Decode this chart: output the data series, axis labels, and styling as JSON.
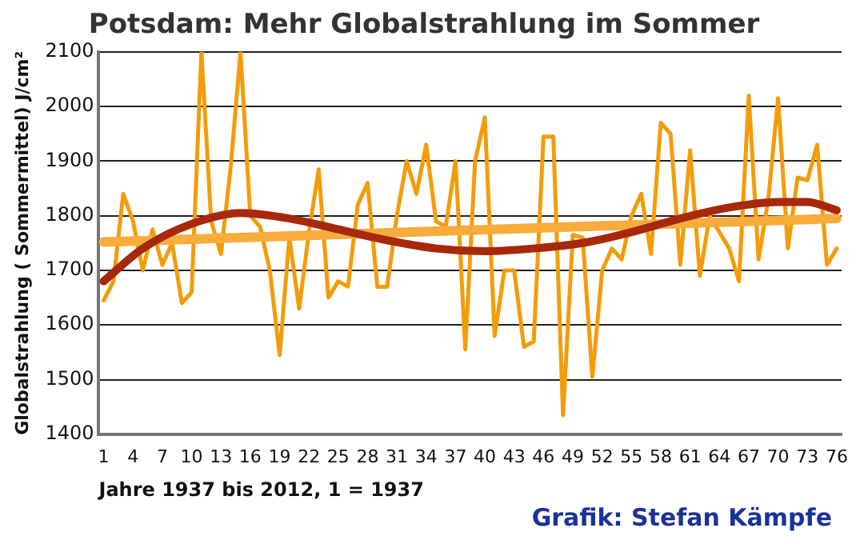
{
  "chart_data": {
    "type": "line",
    "title": "Potsdam: Mehr Globalstrahlung im Sommer",
    "xlabel": "Jahre 1937 bis 2012, 1 = 1937",
    "ylabel": "Globalstrahlung ( Sommermittel) J/cm²",
    "annotations": [
      "Grafik: Stefan Kämpfe"
    ],
    "x": [
      1,
      2,
      3,
      4,
      5,
      6,
      7,
      8,
      9,
      10,
      11,
      12,
      13,
      14,
      15,
      16,
      17,
      18,
      19,
      20,
      21,
      22,
      23,
      24,
      25,
      26,
      27,
      28,
      29,
      30,
      31,
      32,
      33,
      34,
      35,
      36,
      37,
      38,
      39,
      40,
      41,
      42,
      43,
      44,
      45,
      46,
      47,
      48,
      49,
      50,
      51,
      52,
      53,
      54,
      55,
      56,
      57,
      58,
      59,
      60,
      61,
      62,
      63,
      64,
      65,
      66,
      67,
      68,
      69,
      70,
      71,
      72,
      73,
      74,
      75,
      76
    ],
    "series": [
      {
        "color": "#f39c0a",
        "values": [
          1645,
          1680,
          1840,
          1790,
          1700,
          1775,
          1710,
          1750,
          1640,
          1660,
          2100,
          1790,
          1730,
          1890,
          2100,
          1800,
          1780,
          1700,
          1545,
          1760,
          1630,
          1770,
          1885,
          1650,
          1680,
          1670,
          1820,
          1860,
          1670,
          1670,
          1800,
          1900,
          1840,
          1930,
          1790,
          1780,
          1900,
          1555,
          1900,
          1980,
          1580,
          1700,
          1700,
          1560,
          1570,
          1945,
          1945,
          1435,
          1765,
          1760,
          1505,
          1700,
          1740,
          1720,
          1800,
          1840,
          1730,
          1970,
          1950,
          1710,
          1920,
          1690,
          1800,
          1770,
          1740,
          1680,
          2020,
          1720,
          1830,
          2015,
          1740,
          1870,
          1865,
          1930,
          1710,
          1740
        ]
      },
      {
        "color": "#f7ac3c",
        "x": [
          1,
          76
        ],
        "values": [
          1752,
          1795
        ]
      },
      {
        "color": "#a8280c",
        "x": [
          1,
          5,
          10,
          15,
          20,
          25,
          30,
          35,
          40,
          45,
          50,
          55,
          60,
          65,
          70,
          73,
          76
        ],
        "values": [
          1680,
          1740,
          1785,
          1805,
          1795,
          1775,
          1755,
          1740,
          1735,
          1740,
          1750,
          1770,
          1795,
          1815,
          1825,
          1825,
          1810
        ]
      }
    ],
    "xlim": [
      0.5,
      76.5
    ],
    "xticks": [
      1,
      4,
      7,
      10,
      13,
      16,
      19,
      22,
      25,
      28,
      31,
      34,
      37,
      40,
      43,
      46,
      49,
      52,
      55,
      58,
      61,
      64,
      67,
      70,
      73,
      76
    ],
    "ylim": [
      1400,
      2100
    ],
    "yticks": [
      1400,
      1500,
      1600,
      1700,
      1800,
      1900,
      2000,
      2100
    ],
    "grid": "y",
    "legend": false,
    "marker": "none",
    "line_style": "solid"
  }
}
